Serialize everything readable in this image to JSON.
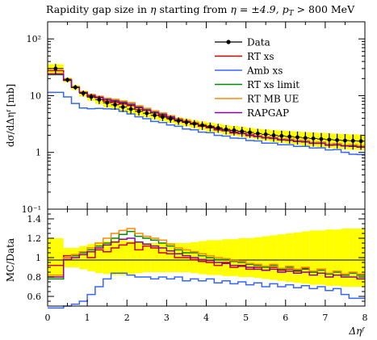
{
  "chart_data": {
    "type": "line",
    "title": "Rapidity gap size in η starting from η = ±4.9, pᵀ > 800 MeV",
    "title_parts": {
      "prefix": "Rapidity gap size in ",
      "eta": "η",
      "mid": " starting from ",
      "eta_eq": "η = ±4.9, ",
      "p": "p",
      "sub": "T",
      "suffix": " > 800 MeV"
    },
    "main_ylabel": "dσ/dΔηᶠ [mb]",
    "ratio_ylabel": "MC/Data",
    "xlabel": "Δηᶠ",
    "xlim": [
      0,
      8
    ],
    "main_ylim": [
      0.1,
      200
    ],
    "main_yscale": "log",
    "ratio_ylim": [
      0.5,
      1.5
    ],
    "x_ticks": [
      "0",
      "1",
      "2",
      "3",
      "4",
      "5",
      "6",
      "7",
      "8"
    ],
    "main_y_ticks": [
      "10⁻¹",
      "1",
      "10",
      "10²"
    ],
    "ratio_y_ticks": [
      "0.6",
      "0.8",
      "1",
      "1.2",
      "1.4"
    ],
    "legend_position": "top-right",
    "bin_edges": [
      0.0,
      0.4,
      0.6,
      0.8,
      1.0,
      1.2,
      1.4,
      1.6,
      1.8,
      2.0,
      2.2,
      2.4,
      2.6,
      2.8,
      3.0,
      3.2,
      3.4,
      3.6,
      3.8,
      4.0,
      4.2,
      4.4,
      4.6,
      4.8,
      5.0,
      5.2,
      5.4,
      5.6,
      5.8,
      6.0,
      6.2,
      6.4,
      6.6,
      6.8,
      7.0,
      7.2,
      7.4,
      7.6,
      7.8,
      8.0
    ],
    "data": {
      "name": "Data",
      "color": "#000000",
      "values": [
        30,
        19,
        14,
        11,
        9.5,
        8.5,
        7.5,
        6.9,
        6.3,
        5.8,
        5.3,
        4.9,
        4.5,
        4.2,
        3.9,
        3.6,
        3.4,
        3.2,
        3.0,
        2.85,
        2.7,
        2.55,
        2.45,
        2.35,
        2.25,
        2.15,
        2.08,
        2.0,
        1.95,
        1.9,
        1.85,
        1.8,
        1.76,
        1.72,
        1.68,
        1.65,
        1.62,
        1.6,
        1.58
      ],
      "uncertainty_fraction": [
        0.2,
        0.1,
        0.1,
        0.12,
        0.14,
        0.16,
        0.17,
        0.18,
        0.18,
        0.17,
        0.16,
        0.15,
        0.15,
        0.15,
        0.15,
        0.15,
        0.15,
        0.16,
        0.17,
        0.18,
        0.18,
        0.19,
        0.19,
        0.2,
        0.2,
        0.21,
        0.22,
        0.23,
        0.24,
        0.25,
        0.26,
        0.27,
        0.28,
        0.28,
        0.29,
        0.29,
        0.3,
        0.3,
        0.3
      ]
    },
    "series": [
      {
        "name": "RT xs",
        "color": "#cc0000",
        "ratio": [
          0.92,
          1.02,
          1.03,
          1.06,
          1.0,
          1.08,
          1.06,
          1.1,
          1.13,
          1.15,
          1.08,
          1.12,
          1.1,
          1.05,
          1.04,
          1.0,
          1.0,
          0.98,
          0.96,
          0.95,
          0.92,
          0.95,
          0.9,
          0.92,
          0.88,
          0.9,
          0.87,
          0.9,
          0.87,
          0.88,
          0.86,
          0.89,
          0.85,
          0.88,
          0.84,
          0.86,
          0.82,
          0.84,
          0.82
        ]
      },
      {
        "name": "Amb xs",
        "color": "#3366ff",
        "ratio": [
          0.38,
          0.5,
          0.52,
          0.55,
          0.62,
          0.7,
          0.78,
          0.84,
          0.84,
          0.82,
          0.8,
          0.8,
          0.78,
          0.8,
          0.78,
          0.8,
          0.76,
          0.78,
          0.76,
          0.78,
          0.74,
          0.76,
          0.73,
          0.75,
          0.72,
          0.74,
          0.7,
          0.73,
          0.7,
          0.72,
          0.69,
          0.71,
          0.68,
          0.7,
          0.66,
          0.68,
          0.62,
          0.58,
          0.58
        ]
      },
      {
        "name": "RT xs limit",
        "color": "#008800",
        "ratio": [
          0.78,
          1.0,
          1.02,
          1.05,
          1.08,
          1.12,
          1.15,
          1.2,
          1.24,
          1.27,
          1.22,
          1.2,
          1.18,
          1.15,
          1.12,
          1.08,
          1.05,
          1.05,
          1.02,
          1.0,
          0.98,
          0.98,
          0.96,
          0.95,
          0.93,
          0.92,
          0.9,
          0.92,
          0.88,
          0.9,
          0.87,
          0.88,
          0.85,
          0.87,
          0.83,
          0.85,
          0.82,
          0.84,
          0.82
        ]
      },
      {
        "name": "RT MB UE",
        "color": "#ff8800",
        "ratio": [
          0.82,
          1.0,
          1.03,
          1.06,
          1.1,
          1.15,
          1.2,
          1.25,
          1.28,
          1.3,
          1.25,
          1.22,
          1.2,
          1.18,
          1.14,
          1.1,
          1.08,
          1.06,
          1.04,
          1.02,
          1.0,
          0.99,
          0.97,
          0.96,
          0.94,
          0.93,
          0.91,
          0.93,
          0.89,
          0.91,
          0.88,
          0.9,
          0.86,
          0.88,
          0.84,
          0.86,
          0.83,
          0.85,
          0.83
        ]
      },
      {
        "name": "RAPGAP",
        "color": "#8800aa",
        "ratio": [
          0.8,
          0.98,
          1.0,
          1.03,
          1.06,
          1.1,
          1.13,
          1.16,
          1.19,
          1.2,
          1.16,
          1.14,
          1.12,
          1.1,
          1.07,
          1.04,
          1.02,
          1.0,
          0.98,
          0.97,
          0.95,
          0.94,
          0.92,
          0.91,
          0.9,
          0.88,
          0.87,
          0.88,
          0.85,
          0.86,
          0.84,
          0.85,
          0.82,
          0.84,
          0.8,
          0.82,
          0.8,
          0.8,
          0.78
        ]
      }
    ]
  }
}
